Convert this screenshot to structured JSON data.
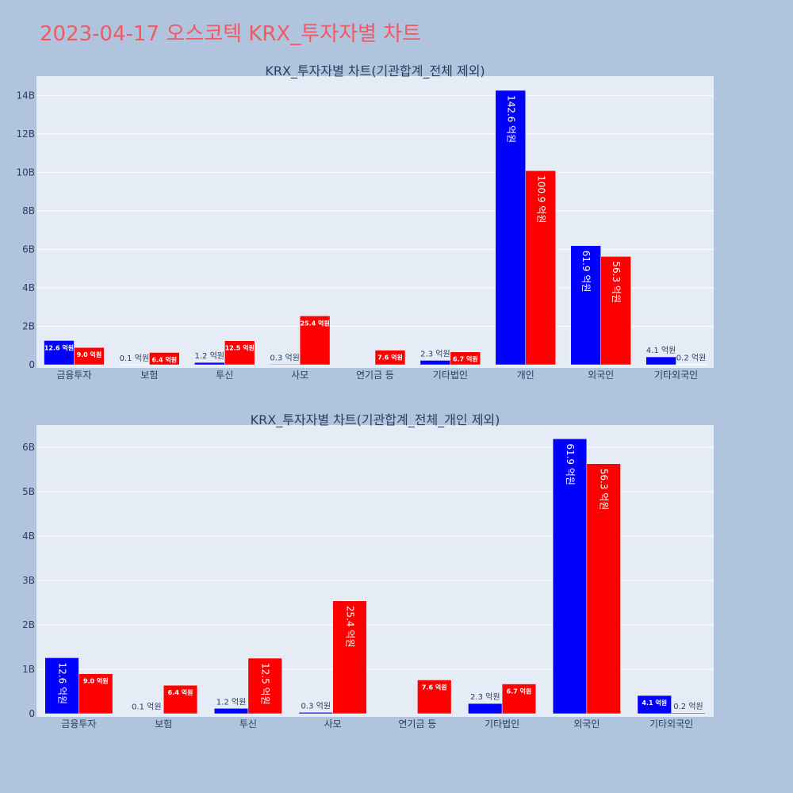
{
  "title": "2023-04-17 오스코텍 KRX_투자자별 차트",
  "colors": {
    "buy": "#0000ff",
    "sell": "#ff0000",
    "plot_bg": "#e5ecf6",
    "page_bg": "#b0c4de",
    "grid": "#ffffff",
    "title": "#ef5a64"
  },
  "chart_data": [
    {
      "type": "bar",
      "title": "KRX_투자자별 차트(기관합계_전체 제외)",
      "categories": [
        "금융투자",
        "보험",
        "투신",
        "사모",
        "연기금 등",
        "기타법인",
        "개인",
        "외국인",
        "기타외국인"
      ],
      "series": [
        {
          "color": "blue",
          "values": [
            1.26,
            0.01,
            0.12,
            0.03,
            0,
            0.23,
            14.26,
            6.19,
            0.41
          ],
          "labels": [
            "12.6 억원",
            "0.1 억원",
            "1.2 억원",
            "0.3 억원",
            "",
            "2.3 억원",
            "142.6 억원",
            "61.9 억원",
            "4.1 억원"
          ]
        },
        {
          "color": "red",
          "values": [
            0.9,
            0.64,
            1.25,
            2.54,
            0.76,
            0.67,
            10.09,
            5.63,
            0.02
          ],
          "labels": [
            "9.0 억원",
            "6.4 억원",
            "12.5 억원",
            "25.4 억원",
            "7.6 억원",
            "6.7 억원",
            "100.9 억원",
            "56.3 억원",
            "0.2 억원"
          ]
        }
      ],
      "ylim": [
        0,
        15
      ],
      "yticks": [
        0,
        2,
        4,
        6,
        8,
        10,
        12,
        14
      ],
      "ytick_labels": [
        "0",
        "2B",
        "4B",
        "6B",
        "8B",
        "10B",
        "12B",
        "14B"
      ],
      "grid": true
    },
    {
      "type": "bar",
      "title": "KRX_투자자별 차트(기관합계_전체_개인 제외)",
      "categories": [
        "금융투자",
        "보험",
        "투신",
        "사모",
        "연기금 등",
        "기타법인",
        "외국인",
        "기타외국인"
      ],
      "series": [
        {
          "color": "blue",
          "values": [
            1.26,
            0.01,
            0.12,
            0.03,
            0,
            0.23,
            6.19,
            0.41
          ],
          "labels": [
            "12.6 억원",
            "0.1 억원",
            "1.2 억원",
            "0.3 억원",
            "",
            "2.3 억원",
            "61.9 억원",
            "4.1 억원"
          ]
        },
        {
          "color": "red",
          "values": [
            0.9,
            0.64,
            1.25,
            2.54,
            0.76,
            0.67,
            5.63,
            0.02
          ],
          "labels": [
            "9.0 억원",
            "6.4 억원",
            "12.5 억원",
            "25.4 억원",
            "7.6 억원",
            "6.7 억원",
            "56.3 억원",
            "0.2 억원"
          ]
        }
      ],
      "ylim": [
        0,
        6.5
      ],
      "yticks": [
        0,
        1,
        2,
        3,
        4,
        5,
        6
      ],
      "ytick_labels": [
        "0",
        "1B",
        "2B",
        "3B",
        "4B",
        "5B",
        "6B"
      ],
      "grid": true
    }
  ]
}
